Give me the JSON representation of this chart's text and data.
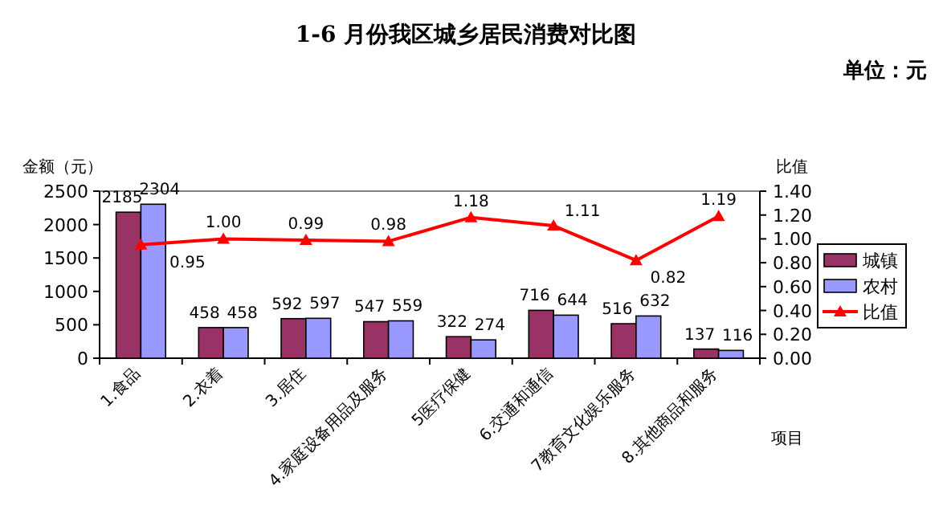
{
  "chart_data": {
    "type": "bar",
    "title": "1-6 月份我区城乡居民消费对比图",
    "annotations": [
      "单位：元"
    ],
    "xlabel": "项目",
    "ylabel": "金额（元）",
    "y2label": "比值",
    "categories": [
      "1.食品",
      "2.衣着",
      "3.居住",
      "4.家庭设备用品及服务",
      "5医疗保健",
      "6.交通和通信",
      "7教育文化娱乐服务",
      "8.其他商品和服务"
    ],
    "series": [
      {
        "name": "城镇",
        "color": "#993366",
        "values": [
          2185,
          458,
          592,
          547,
          322,
          716,
          516,
          137
        ]
      },
      {
        "name": "农村",
        "color": "#9999ff",
        "values": [
          2304,
          458,
          597,
          559,
          274,
          644,
          632,
          116
        ]
      },
      {
        "name": "比值",
        "type": "line",
        "axis": "y2",
        "color": "#ff0000",
        "marker": "triangle",
        "values": [
          0.95,
          1.0,
          0.99,
          0.98,
          1.18,
          1.11,
          0.82,
          1.19
        ],
        "value_labels": [
          "0.95",
          "1.00",
          "0.99",
          "0.98",
          "1.18",
          "1.11",
          "0.82",
          "1.19"
        ]
      }
    ],
    "ylim": [
      0,
      2500
    ],
    "yticks": [
      0,
      500,
      1000,
      1500,
      2000,
      2500
    ],
    "y2lim": [
      0,
      1.4
    ],
    "y2ticks": [
      {
        "value": 0,
        "label": "0.00"
      },
      {
        "value": 0.2,
        "label": "0.20"
      },
      {
        "value": 0.4,
        "label": "0.40"
      },
      {
        "value": 0.6,
        "label": "0.60"
      },
      {
        "value": 0.8,
        "label": "0.80"
      },
      {
        "value": 1.0,
        "label": "1.00"
      },
      {
        "value": 1.2,
        "label": "1.20"
      },
      {
        "value": 1.4,
        "label": "1.40"
      }
    ],
    "data_labels": true,
    "legend": "right",
    "grid": false
  }
}
